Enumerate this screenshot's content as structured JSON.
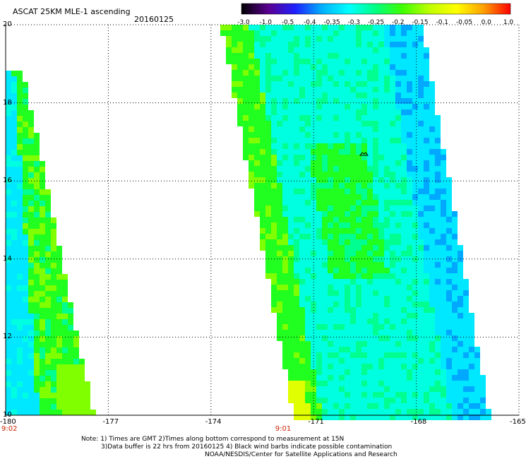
{
  "header": {
    "title": "ASCAT 25KM MLE-1 ascending",
    "date": "20160125"
  },
  "colorbar": {
    "labels": [
      "-3.0",
      "-1.0",
      "-0.5",
      "-0.4",
      "-0.35",
      "-0.3",
      "-0.25",
      "-0.2",
      "-0.15",
      "-0.1",
      "-0.05",
      "0.0",
      "1.0"
    ],
    "colors": [
      "#000000",
      "#5a0090",
      "#2020ff",
      "#00b0ff",
      "#00ffff",
      "#00ff80",
      "#40ff00",
      "#c0ff00",
      "#ffff00",
      "#ffa000",
      "#ff0000"
    ]
  },
  "map": {
    "lon_range": [
      -180,
      -165
    ],
    "lat_range": [
      10,
      20
    ],
    "lon_ticks": [
      "-180",
      "-177",
      "-174",
      "-171",
      "-168",
      "-165"
    ],
    "lat_ticks": [
      "20",
      "18",
      "16",
      "14",
      "12",
      "10"
    ],
    "swath_times": [
      {
        "label": "9:02",
        "lon": -180
      },
      {
        "label": "9:01",
        "lon": -172
      }
    ]
  },
  "footer": {
    "line1": "Note: 1) Times are GMT 2)Times along bottom correspond to measurement at 15N",
    "line2": "3)Data buffer is 22 hrs from 20160125 4) Black wind barbs indicate possible contamination",
    "line3": "NOAA/NESDIS/Center for Satellite Applications and Research"
  }
}
